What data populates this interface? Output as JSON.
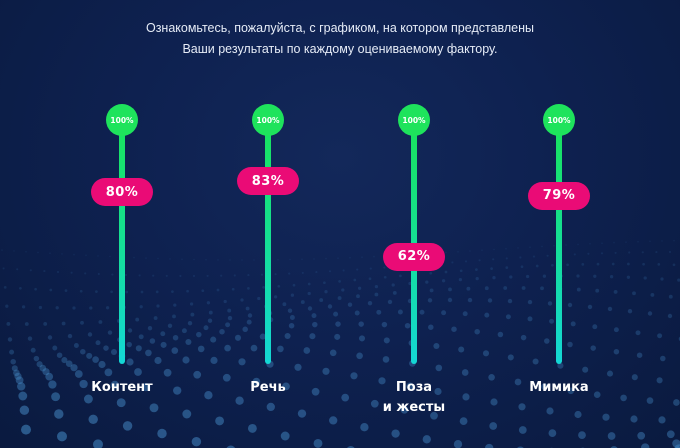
{
  "intro": {
    "line1": "Ознакомьтесь, пожалуйста, с графиком, на котором представлены",
    "line2": "Ваши результаты по каждому оцениваемому фактору."
  },
  "colors": {
    "background": "#0d1f47",
    "track_top": "#19e35a",
    "track_bottom": "#14d7d6",
    "pill": "#ea0b76",
    "max_dot": "#1ee35c"
  },
  "factors": [
    {
      "max_label": "100%",
      "score_label": "80%",
      "score": 80,
      "name_lines": [
        "Контент"
      ]
    },
    {
      "max_label": "100%",
      "score_label": "83%",
      "score": 83,
      "name_lines": [
        "Речь"
      ]
    },
    {
      "max_label": "100%",
      "score_label": "62%",
      "score": 62,
      "name_lines": [
        "Поза",
        "и жесты"
      ]
    },
    {
      "max_label": "100%",
      "score_label": "79%",
      "score": 79,
      "name_lines": [
        "Мимика"
      ]
    }
  ]
}
